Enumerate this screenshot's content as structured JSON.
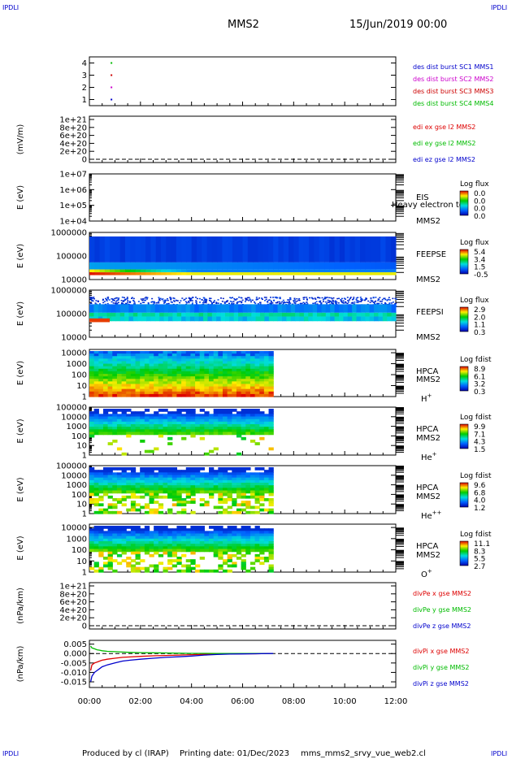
{
  "header": {
    "corner_tl": "IPDLI",
    "corner_tr": "IPDLI",
    "corner_bl": "IPDLI",
    "corner_br": "IPDLI",
    "spacecraft": "MMS2",
    "date": "15/Jun/2019 00:00"
  },
  "footer": {
    "produced_by": "Produced by cl (IRAP)",
    "printing_date": "Printing date: 01/Dec/2023",
    "filename": "mms_mms2_srvy_vue_web2.cl"
  },
  "time_axis": {
    "ticks": [
      "00:00",
      "02:00",
      "04:00",
      "06:00",
      "08:00",
      "10:00",
      "12:00"
    ],
    "range_hours": [
      0,
      12
    ]
  },
  "colors": {
    "mms1": "#0000cc",
    "mms2": "#cc00cc",
    "mms3": "#cc0000",
    "mms4": "#00bb00",
    "x": "#dd0000",
    "y": "#00bb00",
    "z": "#0000cc"
  },
  "chart_data": [
    {
      "id": "burst",
      "type": "scatter",
      "yticks": [
        "1",
        "2",
        "3",
        "4"
      ],
      "ylim": [
        0.5,
        4.5
      ],
      "series": [
        {
          "name": "des dist burst SC1 MMS1",
          "color": "#0000cc",
          "x": [
            0.45
          ],
          "y": [
            1
          ]
        },
        {
          "name": "des dist burst SC2 MMS2",
          "color": "#cc00cc",
          "x": [
            0.45
          ],
          "y": [
            2
          ]
        },
        {
          "name": "des dist burst SC3 MMS3",
          "color": "#cc0000",
          "x": [
            0.45
          ],
          "y": [
            3
          ]
        },
        {
          "name": "des dist burst SC4 MMS4",
          "color": "#00bb00",
          "x": [
            0.45
          ],
          "y": [
            4
          ]
        }
      ]
    },
    {
      "id": "edi",
      "type": "line",
      "ylabel": "(mV/m)",
      "yticks": [
        "0",
        "2e+20",
        "4e+20",
        "6e+20",
        "8e+20",
        "1e+21"
      ],
      "ylim": [
        0,
        1e+21
      ],
      "legend": [
        {
          "text": "edi ex gse l2 MMS2",
          "color": "#dd0000"
        },
        {
          "text": "edi ey gse l2 MMS2",
          "color": "#00bb00"
        },
        {
          "text": "edi ez gse l2 MMS2",
          "color": "#0000cc"
        }
      ]
    },
    {
      "id": "eis",
      "type": "heatmap",
      "ylabel": "E (eV)",
      "yticks": [
        "1e+04",
        "1e+05",
        "1e+06",
        "1e+07"
      ],
      "ylog": [
        4,
        7
      ],
      "label_top": "EIS",
      "label_overlay": "Heavy electron tof",
      "label_sc": "MMS2",
      "colorbar": {
        "title": "Log flux",
        "ticks": [
          "0.0",
          "0.0",
          "0.0",
          "0.0"
        ]
      }
    },
    {
      "id": "feepse",
      "type": "heatmap",
      "ylabel": "E (eV)",
      "yticks": [
        "10000",
        "100000",
        "1000000"
      ],
      "ylog": [
        4,
        6
      ],
      "label_top": "FEEPSE",
      "label_sc": "MMS2",
      "colorbar": {
        "title": "Log flux",
        "ticks": [
          "5.4",
          "3.4",
          "1.5",
          "-0.5"
        ]
      },
      "data_hours": [
        0,
        12
      ]
    },
    {
      "id": "feepsi",
      "type": "heatmap",
      "ylabel": "E (eV)",
      "yticks": [
        "10000",
        "100000",
        "1000000"
      ],
      "ylog": [
        4,
        6
      ],
      "label_top": "FEEPSI",
      "label_sc": "MMS2",
      "colorbar": {
        "title": "Log flux",
        "ticks": [
          "2.9",
          "2.0",
          "1.1",
          "0.3"
        ]
      },
      "data_hours": [
        0,
        12
      ]
    },
    {
      "id": "hpca_h",
      "type": "heatmap",
      "ylabel": "E (eV)",
      "yticks": [
        "1",
        "10",
        "100",
        "1000",
        "10000"
      ],
      "ylog": [
        0,
        4.3
      ],
      "label_top": "HPCA",
      "label_sc": "MMS2",
      "species": "H",
      "species_sup": "+",
      "colorbar": {
        "title": "Log fdist",
        "ticks": [
          "8.9",
          "6.1",
          "3.2",
          "0.3"
        ]
      },
      "data_hours": [
        0,
        7.2
      ]
    },
    {
      "id": "hpca_he",
      "type": "heatmap",
      "ylabel": "E (eV)",
      "yticks": [
        "1",
        "10",
        "100",
        "1000",
        "10000",
        "100000"
      ],
      "ylog": [
        0,
        5
      ],
      "label_top": "HPCA",
      "label_sc": "MMS2",
      "species": "He",
      "species_sup": "+",
      "colorbar": {
        "title": "Log fdist",
        "ticks": [
          "9.9",
          "7.1",
          "4.3",
          "1.5"
        ]
      },
      "data_hours": [
        0,
        7.2
      ]
    },
    {
      "id": "hpca_hepp",
      "type": "heatmap",
      "ylabel": "E (eV)",
      "yticks": [
        "1",
        "10",
        "100",
        "1000",
        "10000",
        "100000"
      ],
      "ylog": [
        0,
        5
      ],
      "label_top": "HPCA",
      "label_sc": "MMS2",
      "species": "He",
      "species_sup": "++",
      "colorbar": {
        "title": "Log fdist",
        "ticks": [
          "9.6",
          "6.8",
          "4.0",
          "1.2"
        ]
      },
      "data_hours": [
        0,
        7.2
      ]
    },
    {
      "id": "hpca_o",
      "type": "heatmap",
      "ylabel": "E (eV)",
      "yticks": [
        "1",
        "10",
        "100",
        "1000",
        "10000"
      ],
      "ylog": [
        0,
        4.3
      ],
      "label_top": "HPCA",
      "label_sc": "MMS2",
      "species": "O",
      "species_sup": "+",
      "colorbar": {
        "title": "Log fdist",
        "ticks": [
          "11.1",
          "8.3",
          "5.5",
          "2.7"
        ]
      },
      "data_hours": [
        0,
        7.2
      ]
    },
    {
      "id": "divpe",
      "type": "line",
      "ylabel": "(nPa/km)",
      "yticks": [
        "0",
        "2e+20",
        "4e+20",
        "6e+20",
        "8e+20",
        "1e+21"
      ],
      "ylim": [
        0,
        1e+21
      ],
      "legend": [
        {
          "text": "divPe x gse MMS2",
          "color": "#dd0000"
        },
        {
          "text": "divPe y gse MMS2",
          "color": "#00bb00"
        },
        {
          "text": "divPe z gse MMS2",
          "color": "#0000cc"
        }
      ]
    },
    {
      "id": "divpi",
      "type": "line",
      "ylabel": "(nPa/km)",
      "yticks": [
        "-0.015",
        "-0.010",
        "-0.005",
        "0.000",
        "0.005"
      ],
      "ylim": [
        -0.018,
        0.007
      ],
      "legend": [
        {
          "text": "divPi x gse MMS2",
          "color": "#dd0000"
        },
        {
          "text": "divPi y gse MMS2",
          "color": "#00bb00"
        },
        {
          "text": "divPi z gse MMS2",
          "color": "#0000cc"
        }
      ],
      "series": [
        {
          "name": "x",
          "color": "#dd0000",
          "x": [
            0.05,
            0.1,
            0.2,
            0.3,
            0.4,
            0.5,
            0.7,
            1.0,
            1.3,
            1.6,
            2.0,
            2.5,
            3.0,
            3.5,
            4.0,
            4.5,
            5.0,
            5.5,
            6.0,
            6.5,
            7.0,
            7.2
          ],
          "y": [
            -0.009,
            -0.006,
            -0.005,
            -0.0045,
            -0.004,
            -0.0035,
            -0.003,
            -0.0025,
            -0.002,
            -0.0018,
            -0.0015,
            -0.0012,
            -0.001,
            -0.0008,
            -0.0006,
            -0.0004,
            -0.0003,
            -0.0002,
            -0.0001,
            -0.0001,
            0,
            0
          ]
        },
        {
          "name": "y",
          "color": "#00bb00",
          "x": [
            0.05,
            0.1,
            0.2,
            0.3,
            0.4,
            0.5,
            0.7,
            1.0,
            1.3,
            1.6,
            2.0,
            2.5,
            3.0,
            3.5,
            4.0,
            4.5,
            5.0,
            5.5,
            6.0,
            6.5,
            7.0,
            7.2
          ],
          "y": [
            0.004,
            0.003,
            0.0025,
            0.002,
            0.0018,
            0.0015,
            0.0012,
            0.001,
            0.0008,
            0.0006,
            0.0005,
            0.0004,
            0.0003,
            0.0002,
            0.0001,
            0.0001,
            0,
            0,
            0,
            0,
            0,
            0
          ]
        },
        {
          "name": "z",
          "color": "#0000cc",
          "x": [
            0.05,
            0.1,
            0.2,
            0.3,
            0.4,
            0.5,
            0.7,
            1.0,
            1.3,
            1.6,
            2.0,
            2.5,
            3.0,
            3.5,
            4.0,
            4.5,
            5.0,
            5.5,
            6.0,
            6.5,
            7.0,
            7.2
          ],
          "y": [
            -0.015,
            -0.012,
            -0.01,
            -0.009,
            -0.008,
            -0.007,
            -0.006,
            -0.005,
            -0.004,
            -0.0035,
            -0.003,
            -0.0025,
            -0.002,
            -0.0017,
            -0.0013,
            -0.0008,
            -0.0005,
            -0.0003,
            -0.0002,
            -0.0001,
            0,
            0
          ]
        }
      ]
    }
  ]
}
